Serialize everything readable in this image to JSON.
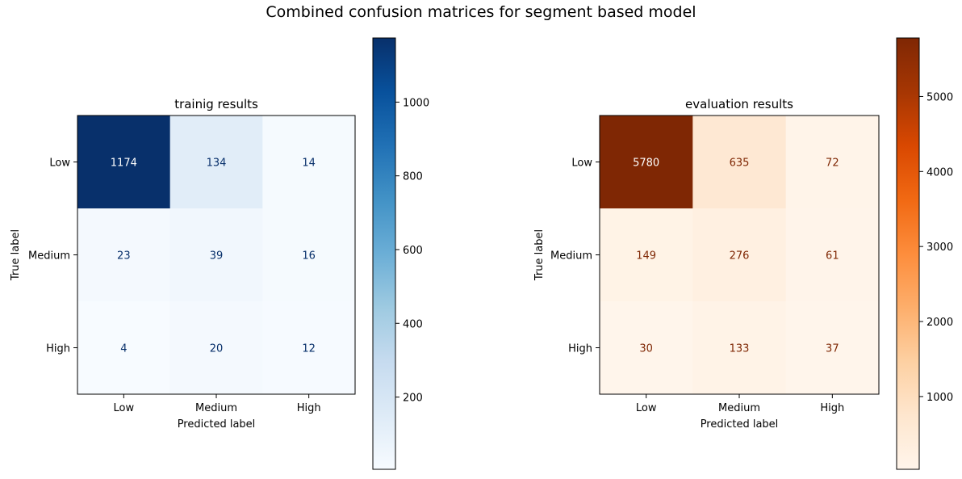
{
  "chart_data": {
    "title": "Combined confusion matrices for segment based model",
    "panels": [
      {
        "type": "heatmap",
        "title": "trainig results",
        "xlabel": "Predicted label",
        "ylabel": "True label",
        "x_categories": [
          "Low",
          "Medium",
          "High"
        ],
        "y_categories": [
          "Low",
          "Medium",
          "High"
        ],
        "values": [
          [
            1174,
            134,
            14
          ],
          [
            23,
            39,
            16
          ],
          [
            4,
            20,
            12
          ]
        ],
        "colormap": "Blues",
        "colorbar": {
          "min": 4,
          "max": 1174,
          "ticks": [
            200,
            400,
            600,
            800,
            1000
          ]
        }
      },
      {
        "type": "heatmap",
        "title": "evaluation results",
        "xlabel": "Predicted label",
        "ylabel": "True label",
        "x_categories": [
          "Low",
          "Medium",
          "High"
        ],
        "y_categories": [
          "Low",
          "Medium",
          "High"
        ],
        "values": [
          [
            5780,
            635,
            72
          ],
          [
            149,
            276,
            61
          ],
          [
            30,
            133,
            37
          ]
        ],
        "colormap": "Oranges",
        "colorbar": {
          "min": 30,
          "max": 5780,
          "ticks": [
            1000,
            2000,
            3000,
            4000,
            5000
          ]
        }
      }
    ]
  },
  "colors": {
    "Blues": [
      "#f7fbff",
      "#deebf7",
      "#c6dbef",
      "#9ecae1",
      "#6baed6",
      "#4292c6",
      "#2171b5",
      "#08519c",
      "#08306b"
    ],
    "Oranges": [
      "#fff5eb",
      "#fee6ce",
      "#fdd0a2",
      "#fdae6b",
      "#fd8d3c",
      "#f16913",
      "#d94801",
      "#a63603",
      "#7f2704"
    ]
  }
}
